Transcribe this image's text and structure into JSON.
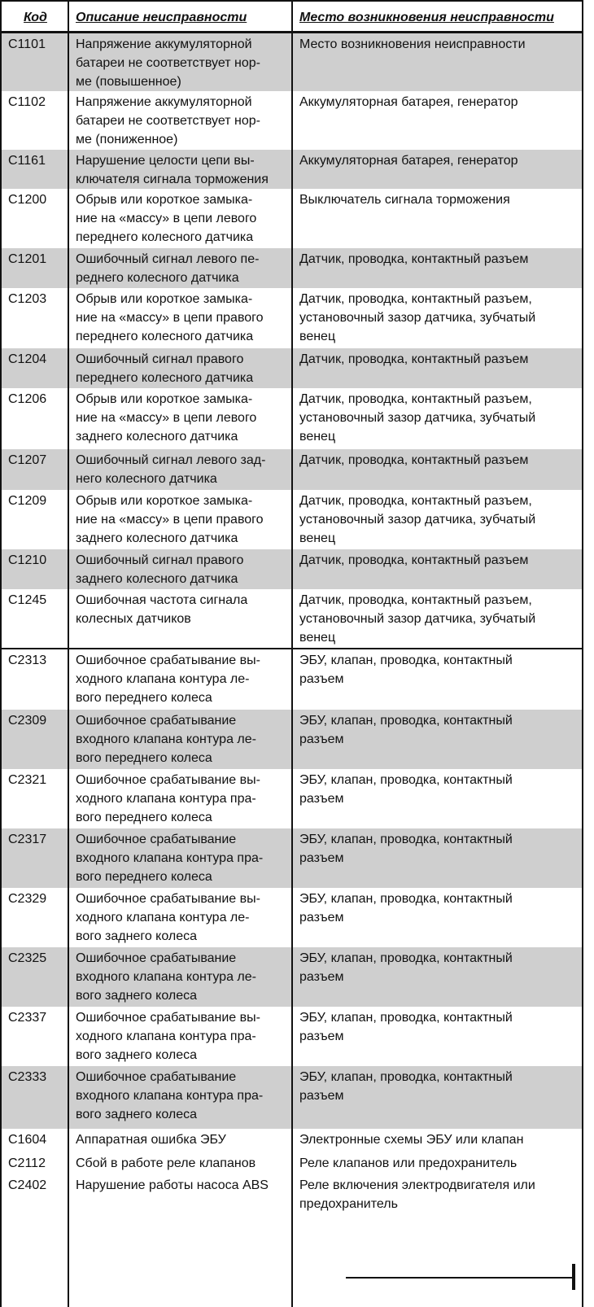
{
  "table": {
    "header": [
      "Код",
      "Описание неисправности",
      "Место возникновения неисправности"
    ],
    "rows": [
      [
        "C1101",
        "Напряжение аккумуляторной\nбатареи не соответствует нор-\nме (повышенное)",
        "Место возникновения неисправности"
      ],
      [
        "C1102",
        "Напряжение аккумуляторной\nбатареи не соответствует нор-\nме (пониженное)",
        "Аккумуляторная батарея, генератор"
      ],
      [
        "C1161",
        "Нарушение целости цепи вы-\nключателя сигнала торможения",
        "Аккумуляторная батарея, генератор"
      ],
      [
        "C1200",
        "Обрыв или короткое замыка-\nние на «массу» в цепи левого\nпереднего колесного датчика",
        "Выключатель сигнала торможения"
      ],
      [
        "C1201",
        "Ошибочный сигнал левого пе-\nреднего колесного датчика",
        "Датчик, проводка, контактный разъем"
      ],
      [
        "C1203",
        "Обрыв или короткое замыка-\nние на «массу» в цепи правого\nпереднего колесного датчика",
        "Датчик, проводка, контактный разъем,\nустановочный зазор датчика, зубчатый\nвенец"
      ],
      [
        "C1204",
        "Ошибочный сигнал правого\nпереднего колесного датчика",
        "Датчик, проводка, контактный разъем"
      ],
      [
        "C1206",
        "Обрыв или короткое замыка-\nние на «массу» в цепи левого\nзаднего колесного датчика",
        "Датчик, проводка, контактный разъем,\nустановочный зазор датчика, зубчатый\nвенец"
      ],
      [
        "C1207",
        "Ошибочный сигнал левого зад-\nнего колесного датчика",
        "Датчик, проводка, контактный разъем"
      ],
      [
        "C1209",
        "Обрыв или короткое замыка-\nние на «массу» в цепи правого\nзаднего колесного датчика",
        "Датчик, проводка, контактный разъем,\nустановочный зазор датчика, зубчатый\nвенец"
      ],
      [
        "C1210",
        "Ошибочный сигнал правого\nзаднего колесного датчика",
        "Датчик, проводка, контактный разъем"
      ],
      [
        "C1245",
        "Ошибочная частота сигнала\nколесных датчиков",
        "Датчик, проводка, контактный разъем,\nустановочный зазор датчика, зубчатый\nвенец"
      ],
      [
        "C2313",
        "Ошибочное срабатывание вы-\nходного клапана контура ле-\nвого переднего колеса",
        "ЭБУ, клапан, проводка, контактный\nразъем"
      ],
      [
        "C2309",
        "Ошибочное срабатывание\nвходного клапана контура ле-\nвого переднего колеса",
        "ЭБУ, клапан, проводка, контактный\nразъем"
      ],
      [
        "C2321",
        "Ошибочное срабатывание вы-\nходного клапана контура пра-\nвого переднего колеса",
        "ЭБУ, клапан, проводка, контактный\nразъем"
      ],
      [
        "C2317",
        "Ошибочное срабатывание\nвходного клапана контура пра-\nвого переднего колеса",
        "ЭБУ, клапан, проводка, контактный\nразъем"
      ],
      [
        "C2329",
        "Ошибочное срабатывание вы-\nходного клапана контура ле-\nвого заднего колеса",
        "ЭБУ, клапан, проводка, контактный\nразъем"
      ],
      [
        "C2325",
        "Ошибочное срабатывание\nвходного клапана контура ле-\nвого заднего колеса",
        "ЭБУ, клапан, проводка, контактный\nразъем"
      ],
      [
        "C2337",
        "Ошибочное срабатывание вы-\nходного клапана контура пра-\nвого заднего колеса",
        "ЭБУ, клапан, проводка, контактный\nразъем"
      ],
      [
        "C2333",
        "Ошибочное срабатывание\nвходного клапана контура пра-\nвого заднего колеса",
        "ЭБУ, клапан, проводка, контактный\nразъем"
      ],
      [
        "C1604",
        "Аппаратная ошибка ЭБУ",
        "Электронные схемы ЭБУ или клапан"
      ],
      [
        "C2112",
        "Сбой в работе реле клапанов",
        "Реле клапанов или предохранитель"
      ],
      [
        "C2402",
        "Нарушение работы насоса ABS",
        "Реле включения электродвигателя или\nпредохранитель"
      ]
    ]
  }
}
